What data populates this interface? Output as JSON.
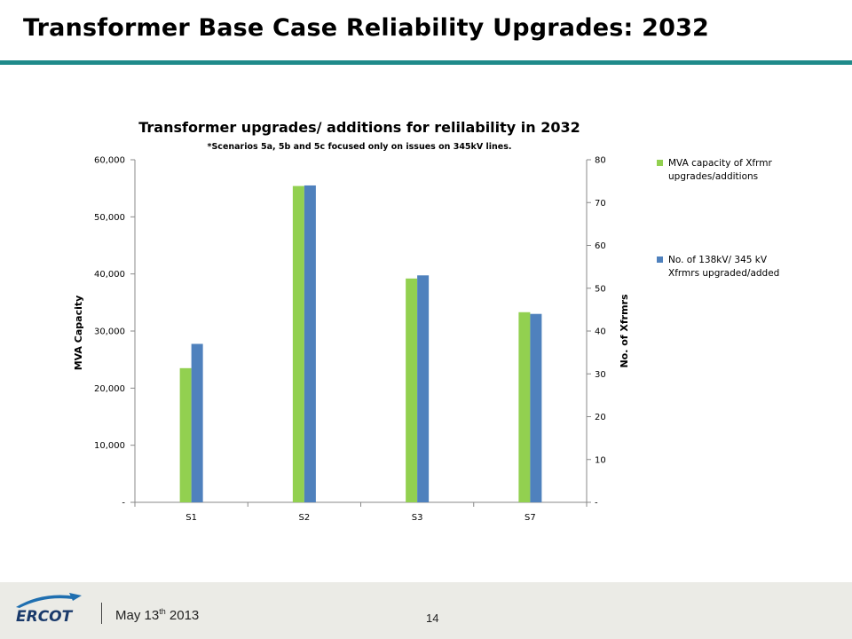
{
  "slide": {
    "title": "Transformer Base Case Reliability Upgrades:  2032",
    "date_prefix": "May 13",
    "date_sup": "th",
    "date_suffix": " 2013",
    "page_number": "14",
    "logo_text": "ERCOT"
  },
  "colors": {
    "accent": "#1f8a8a",
    "green": "#92d050",
    "blue": "#4f81bd"
  },
  "chart_data": {
    "type": "bar",
    "title": "Transformer  upgrades/  additions  for  relilability  in 2032",
    "subtitle": "*Scenarios 5a, 5b and 5c focused  only on issues on 345kV lines.",
    "categories": [
      "S1",
      "S2",
      "S3",
      "S7"
    ],
    "series": [
      {
        "name": "MVA capacity of Xfrmr upgrades/additions",
        "axis": "left",
        "values": [
          23500,
          55400,
          39200,
          33300
        ]
      },
      {
        "name": "No. of 138kV/ 345 kV Xfrmrs upgraded/added",
        "axis": "right",
        "values": [
          37,
          74,
          53,
          44
        ]
      }
    ],
    "ylabel": "MVA Capacity",
    "ylabel_right": "No. of Xfrmrs",
    "ylim": [
      0,
      60000
    ],
    "ylim_right": [
      0,
      80
    ],
    "yticks": [
      "-",
      "10,000",
      "20,000",
      "30,000",
      "40,000",
      "50,000",
      "60,000"
    ],
    "yticks_right": [
      "-",
      "10",
      "20",
      "30",
      "40",
      "50",
      "60",
      "70",
      "80"
    ],
    "legend": "right",
    "grid": false
  }
}
